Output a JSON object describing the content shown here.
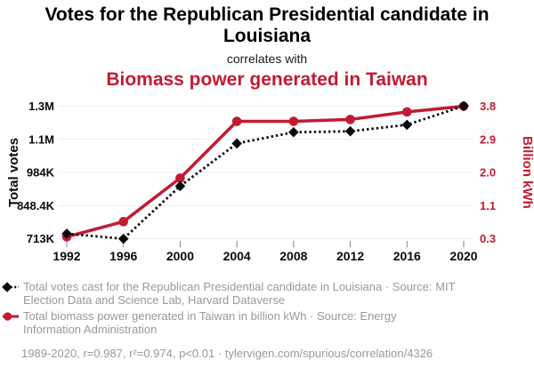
{
  "header": {
    "title": "Votes for the Republican Presidential candidate in Louisiana",
    "connector": "correlates with",
    "subtitle": "Biomass power generated in Taiwan"
  },
  "colors": {
    "accent_red": "#c11b33",
    "series_black": "#0a0a0a",
    "legend_gray": "#999999",
    "gridline": "#ececec",
    "tick_mark": "#888888"
  },
  "chart_data": {
    "type": "line",
    "x": [
      1992,
      1996,
      2000,
      2004,
      2008,
      2012,
      2016,
      2020
    ],
    "series": [
      {
        "name": "Total votes cast for the Republican Presidential candidate in Louisiana",
        "axis": "left",
        "style": "dotted-line-diamond-markers",
        "values": [
          733386,
          712586,
          927871,
          1102169,
          1148275,
          1152262,
          1178638,
          1255776
        ]
      },
      {
        "name": "Total biomass power generated in Taiwan in billion kWh",
        "axis": "right",
        "style": "solid-line-circle-markers",
        "values": [
          0.35,
          0.75,
          1.9,
          3.4,
          3.4,
          3.45,
          3.65,
          3.8
        ]
      }
    ],
    "left_axis": {
      "label": "Total votes",
      "tick_labels": [
        "1.3M",
        "1.1M",
        "984K",
        "848.4K",
        "713K"
      ],
      "min": 713000,
      "max": 1254600
    },
    "right_axis": {
      "label": "Billion kWh",
      "tick_labels": [
        "3.8",
        "2.9",
        "2.0",
        "1.1",
        "0.3"
      ],
      "min": 0.3,
      "max": 3.8
    },
    "grid": "horizontal",
    "legend_position": "bottom"
  },
  "legend": {
    "items": [
      {
        "marker": "black-diamond-dotted-line",
        "label": "Total votes cast for the Republican Presidential candidate in Louisiana · Source: MIT Election Data and Science Lab, Harvard Dataverse"
      },
      {
        "marker": "red-circle-solid-line",
        "label": "Total biomass power generated in Taiwan in billion kWh · Source: Energy Information Administration"
      }
    ],
    "footer": "1989-2020, r=0.987, r²=0.974, p<0.01 · tylervigen.com/spurious/correlation/4326"
  }
}
